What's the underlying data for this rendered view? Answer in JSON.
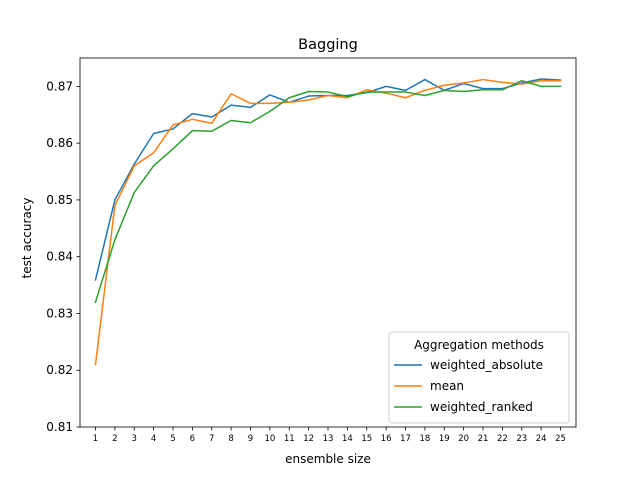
{
  "chart_data": {
    "type": "line",
    "title": "Bagging",
    "xlabel": "ensemble size",
    "ylabel": "test accuracy",
    "x": [
      1,
      2,
      3,
      4,
      5,
      6,
      7,
      8,
      9,
      10,
      11,
      12,
      13,
      14,
      15,
      16,
      17,
      18,
      19,
      20,
      21,
      22,
      23,
      24,
      25
    ],
    "xlim": [
      0.2,
      25.8
    ],
    "ylim": [
      0.81,
      0.875
    ],
    "yticks": [
      0.81,
      0.82,
      0.83,
      0.84,
      0.85,
      0.86,
      0.87
    ],
    "ytick_labels": [
      "0.81",
      "0.82",
      "0.83",
      "0.84",
      "0.85",
      "0.86",
      "0.87"
    ],
    "grid": false,
    "legend": {
      "title": "Aggregation methods",
      "placement": "lower-right"
    },
    "series": [
      {
        "name": "weighted_absolute",
        "color": "#1f77b4",
        "values": [
          0.8359,
          0.85,
          0.8563,
          0.8617,
          0.8625,
          0.8652,
          0.8646,
          0.8667,
          0.8663,
          0.8685,
          0.8672,
          0.8683,
          0.8684,
          0.8684,
          0.8689,
          0.87,
          0.8693,
          0.8712,
          0.8693,
          0.8705,
          0.8696,
          0.8696,
          0.8706,
          0.8713,
          0.8711
        ]
      },
      {
        "name": "mean",
        "color": "#ff7f0e",
        "values": [
          0.821,
          0.849,
          0.856,
          0.8583,
          0.8632,
          0.8642,
          0.8635,
          0.8687,
          0.867,
          0.867,
          0.8672,
          0.8676,
          0.8684,
          0.868,
          0.8694,
          0.8688,
          0.868,
          0.8693,
          0.8702,
          0.8706,
          0.8712,
          0.8707,
          0.8704,
          0.871,
          0.871
        ]
      },
      {
        "name": "weighted_ranked",
        "color": "#2ca02c",
        "values": [
          0.832,
          0.843,
          0.8513,
          0.856,
          0.859,
          0.8622,
          0.8621,
          0.864,
          0.8636,
          0.8656,
          0.868,
          0.8691,
          0.869,
          0.8682,
          0.869,
          0.869,
          0.869,
          0.8684,
          0.8693,
          0.8691,
          0.8694,
          0.8694,
          0.871,
          0.87,
          0.87
        ]
      }
    ]
  }
}
